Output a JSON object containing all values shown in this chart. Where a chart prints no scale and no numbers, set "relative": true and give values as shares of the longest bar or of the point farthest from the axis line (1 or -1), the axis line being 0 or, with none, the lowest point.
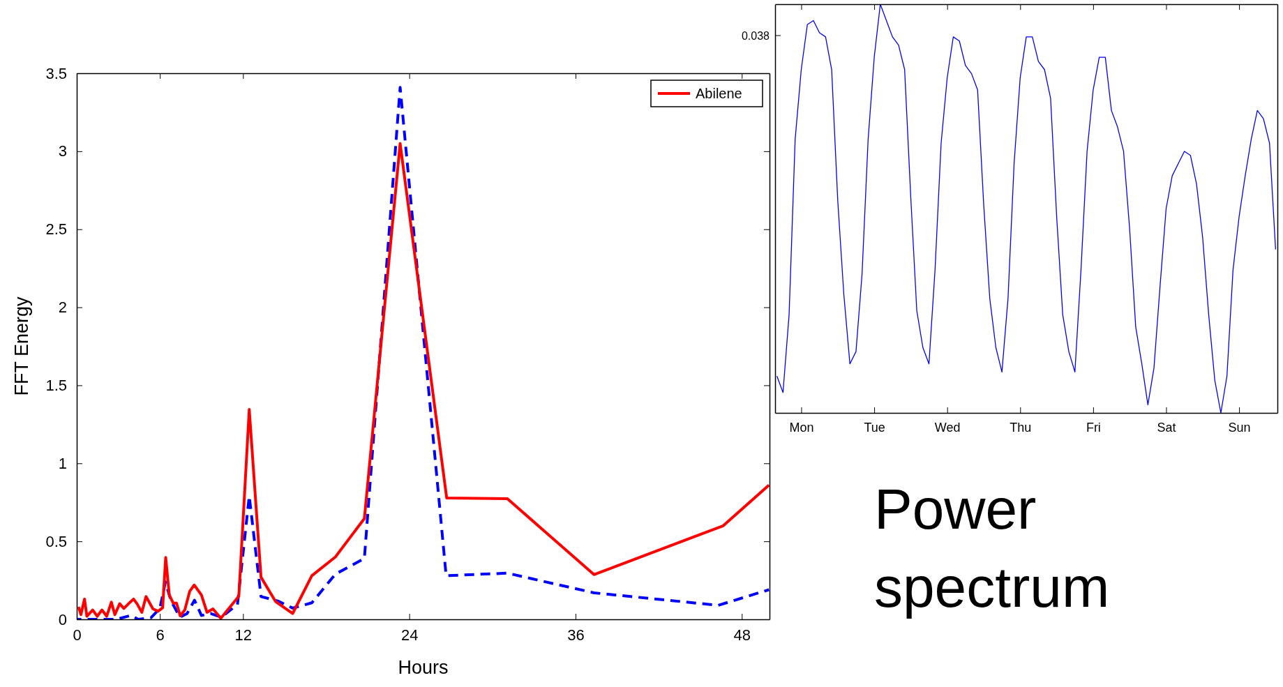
{
  "chart_data": [
    {
      "type": "line",
      "xlabel": "Hours",
      "ylabel": "FFT Energy",
      "xlim": [
        0,
        50
      ],
      "xticks": [
        0,
        6,
        12,
        24,
        36,
        48
      ],
      "ylim": [
        0,
        3.5
      ],
      "yticks": [
        0,
        0.5,
        1,
        1.5,
        2,
        2.5,
        3,
        3.5
      ],
      "grid": false,
      "legend": "top right",
      "annotations": [
        "Power spectrum"
      ],
      "series": [
        {
          "color": "#0000ff",
          "line_style": "dashed",
          "x": [
            0,
            2.87,
            3.9,
            4.44,
            5.35,
            6.0,
            6.4,
            6.8,
            7.44,
            7.96,
            8.5,
            9.0,
            9.66,
            10.44,
            11.6,
            12.45,
            13.3,
            14.5,
            15.58,
            16.97,
            18.67,
            20.76,
            23.34,
            26.66,
            31.08,
            37.33,
            46.3,
            49.96
          ],
          "values": [
            0,
            0,
            0.025,
            0,
            0.01,
            0.07,
            0.24,
            0.12,
            0.014,
            0.037,
            0.123,
            0.025,
            0.037,
            0.014,
            0.095,
            0.79,
            0.146,
            0.118,
            0.072,
            0.106,
            0.29,
            0.39,
            3.41,
            0.28,
            0.296,
            0.17,
            0.09,
            0.19
          ]
        },
        {
          "name": "Abilene",
          "color": "#ff0000",
          "line_style": "solid",
          "x": [
            0.13,
            0.3,
            0.56,
            0.73,
            1.15,
            1.48,
            1.82,
            2.16,
            2.5,
            2.75,
            3.1,
            3.4,
            3.85,
            4.1,
            4.35,
            4.7,
            5.0,
            5.5,
            5.87,
            6.2,
            6.42,
            6.68,
            6.96,
            7.2,
            7.47,
            7.8,
            8.15,
            8.48,
            9.0,
            9.4,
            9.83,
            10.4,
            11.7,
            12.45,
            13.3,
            14.36,
            15.58,
            16.97,
            18.67,
            20.76,
            23.34,
            26.7,
            31.08,
            37.33,
            46.66,
            49.96
          ],
          "values": [
            0.08,
            0.03,
            0.13,
            0.02,
            0.06,
            0.02,
            0.06,
            0.02,
            0.11,
            0.03,
            0.1,
            0.07,
            0.11,
            0.13,
            0.1,
            0.045,
            0.146,
            0.067,
            0.052,
            0.074,
            0.397,
            0.156,
            0.104,
            0.104,
            0.022,
            0.06,
            0.179,
            0.22,
            0.156,
            0.045,
            0.067,
            0.007,
            0.149,
            1.345,
            0.27,
            0.113,
            0.037,
            0.28,
            0.4,
            0.646,
            3.05,
            0.778,
            0.773,
            0.287,
            0.6,
            0.86
          ]
        }
      ]
    },
    {
      "type": "line",
      "relative": true,
      "grid": false,
      "annotations": [
        "0.038"
      ],
      "categories": [
        null,
        null,
        null,
        null,
        "Mon",
        null,
        null,
        null,
        null,
        null,
        null,
        null,
        null,
        null,
        null,
        null,
        "Tue",
        null,
        null,
        null,
        null,
        null,
        null,
        null,
        null,
        null,
        null,
        null,
        "Wed",
        null,
        null,
        null,
        null,
        null,
        null,
        null,
        null,
        null,
        null,
        null,
        "Thu",
        null,
        null,
        null,
        null,
        null,
        null,
        null,
        null,
        null,
        null,
        null,
        "Fri",
        null,
        null,
        null,
        null,
        null,
        null,
        null,
        null,
        null,
        null,
        null,
        "Sat",
        null,
        null,
        null,
        null,
        null,
        null,
        null,
        null,
        null,
        null,
        null,
        "Sun",
        null,
        null,
        null,
        null,
        null,
        null
      ],
      "series": [
        {
          "color": "#0000ff",
          "values": [
            0.09,
            0.05,
            0.24,
            0.67,
            0.84,
            0.95,
            0.96,
            0.93,
            0.92,
            0.84,
            0.52,
            0.29,
            0.12,
            0.15,
            0.34,
            0.67,
            0.87,
            1.0,
            0.96,
            0.92,
            0.9,
            0.84,
            0.53,
            0.25,
            0.16,
            0.12,
            0.35,
            0.66,
            0.82,
            0.92,
            0.91,
            0.85,
            0.83,
            0.79,
            0.51,
            0.28,
            0.16,
            0.1,
            0.28,
            0.61,
            0.82,
            0.92,
            0.92,
            0.86,
            0.84,
            0.77,
            0.48,
            0.24,
            0.15,
            0.1,
            0.35,
            0.64,
            0.79,
            0.87,
            0.87,
            0.74,
            0.7,
            0.64,
            0.45,
            0.21,
            0.12,
            0.02,
            0.11,
            0.31,
            0.5,
            0.58,
            0.61,
            0.64,
            0.63,
            0.56,
            0.43,
            0.24,
            0.08,
            0,
            0.09,
            0.35,
            0.48,
            0.58,
            0.67,
            0.74,
            0.72,
            0.66,
            0.4
          ]
        }
      ]
    }
  ]
}
